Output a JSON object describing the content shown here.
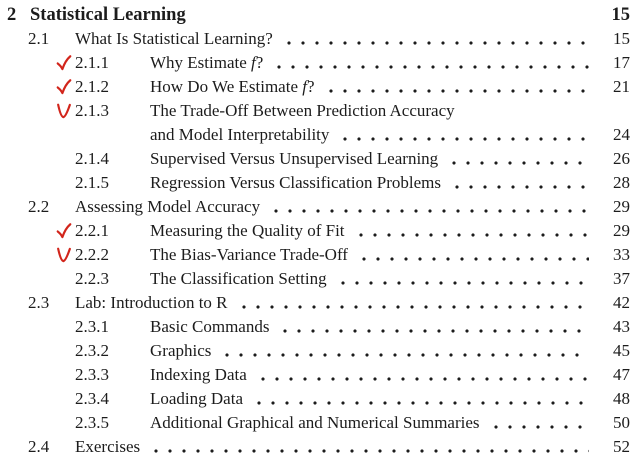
{
  "page": {
    "background": "#ffffff",
    "text_color": "#1c1c1c",
    "mark_color": "#d2251b"
  },
  "toc": {
    "chapter": {
      "number": "2",
      "title": "Statistical Learning",
      "page": "15"
    },
    "entries": [
      {
        "level": 2,
        "number": "2.1",
        "title": "What Is Statistical Learning?",
        "page": "15",
        "mark": "none"
      },
      {
        "level": 3,
        "number": "2.1.1",
        "title": "Why Estimate $f$?",
        "page": "17",
        "mark": "check"
      },
      {
        "level": 3,
        "number": "2.1.2",
        "title": "How Do We Estimate $f$?",
        "page": "21",
        "mark": "check"
      },
      {
        "level": 3,
        "number": "2.1.3",
        "title": "The Trade-Off Between Prediction Accuracy",
        "title_line2": "and Model Interpretability",
        "page": "24",
        "mark": "vee"
      },
      {
        "level": 3,
        "number": "2.1.4",
        "title": "Supervised Versus Unsupervised Learning",
        "page": "26",
        "mark": "none"
      },
      {
        "level": 3,
        "number": "2.1.5",
        "title": "Regression Versus Classification Problems",
        "page": "28",
        "mark": "none"
      },
      {
        "level": 2,
        "number": "2.2",
        "title": "Assessing Model Accuracy",
        "page": "29",
        "mark": "none"
      },
      {
        "level": 3,
        "number": "2.2.1",
        "title": "Measuring the Quality of Fit",
        "page": "29",
        "mark": "check"
      },
      {
        "level": 3,
        "number": "2.2.2",
        "title": "The Bias-Variance Trade-Off",
        "page": "33",
        "mark": "vee"
      },
      {
        "level": 3,
        "number": "2.2.3",
        "title": "The Classification Setting",
        "page": "37",
        "mark": "none"
      },
      {
        "level": 2,
        "number": "2.3",
        "title": "Lab: Introduction to R",
        "page": "42",
        "mark": "none"
      },
      {
        "level": 3,
        "number": "2.3.1",
        "title": "Basic Commands",
        "page": "43",
        "mark": "none"
      },
      {
        "level": 3,
        "number": "2.3.2",
        "title": "Graphics",
        "page": "45",
        "mark": "none"
      },
      {
        "level": 3,
        "number": "2.3.3",
        "title": "Indexing Data",
        "page": "47",
        "mark": "none"
      },
      {
        "level": 3,
        "number": "2.3.4",
        "title": "Loading Data",
        "page": "48",
        "mark": "none"
      },
      {
        "level": 3,
        "number": "2.3.5",
        "title": "Additional Graphical and Numerical Summaries",
        "page": "50",
        "mark": "none"
      },
      {
        "level": 2,
        "number": "2.4",
        "title": "Exercises",
        "page": "52",
        "mark": "none"
      }
    ]
  }
}
